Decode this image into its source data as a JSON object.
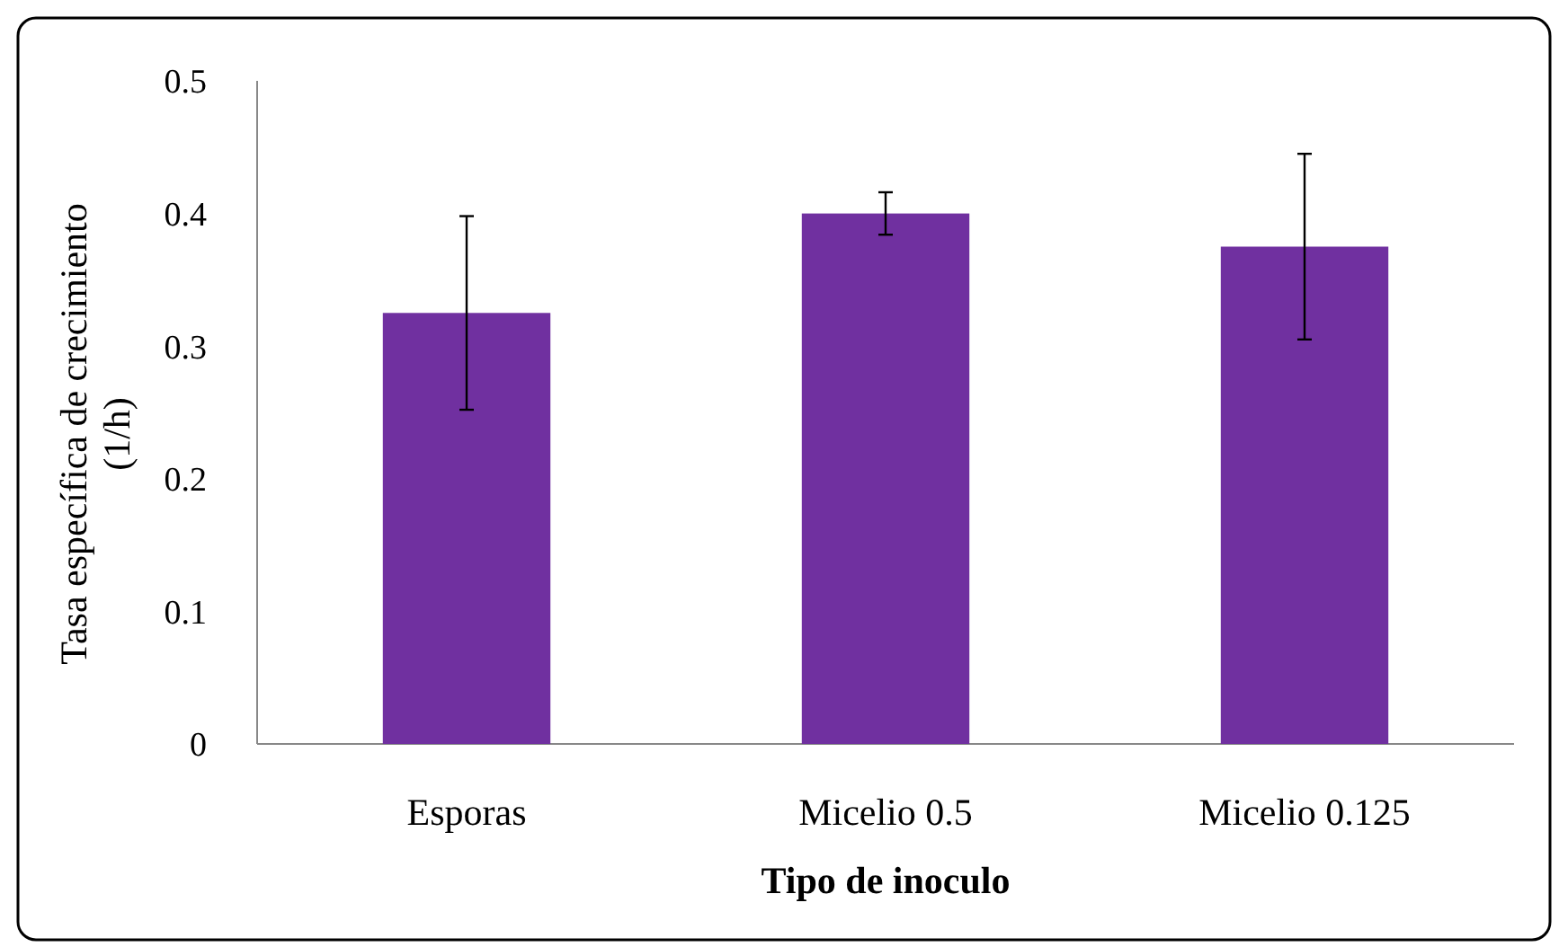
{
  "chart_data": {
    "type": "bar",
    "categories": [
      "Esporas",
      "Micelio 0.5",
      "Micelio 0.125"
    ],
    "values": [
      0.325,
      0.4,
      0.375
    ],
    "errors": [
      0.073,
      0.016,
      0.07
    ],
    "color": "#7030a0",
    "xlabel": "Tipo de inoculo",
    "ylabel": "Tasa específica de crecimiento (1/h)",
    "ylim": [
      0,
      0.5
    ],
    "yticks": [
      0,
      0.1,
      0.2,
      0.3,
      0.4,
      0.5
    ],
    "grid": false
  }
}
